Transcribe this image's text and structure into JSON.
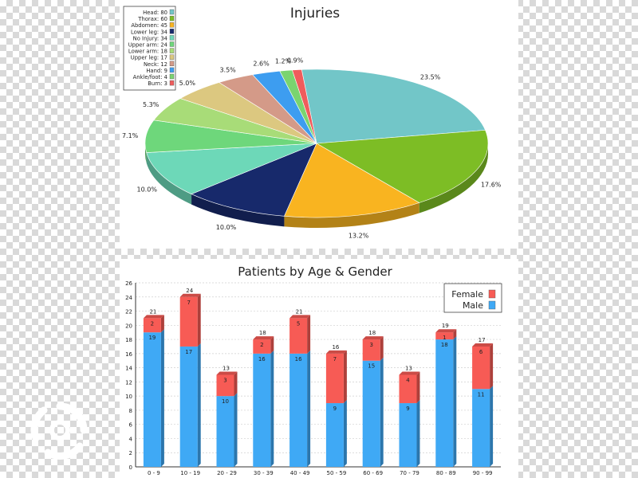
{
  "chart_data": [
    {
      "type": "pie",
      "title": "Injuries",
      "legend_position": "top-left",
      "slices": [
        {
          "label": "Head",
          "value": 80,
          "percent_label": "23.5%",
          "color": "#72c6c8"
        },
        {
          "label": "Thorax",
          "value": 60,
          "percent_label": "17.6%",
          "color": "#7dbd25"
        },
        {
          "label": "Abdomen",
          "value": 45,
          "percent_label": "13.2%",
          "color": "#f9b420"
        },
        {
          "label": "Lower leg",
          "value": 34,
          "percent_label": "10.0%",
          "color": "#17296b"
        },
        {
          "label": "No Injury",
          "value": 34,
          "percent_label": "10.0%",
          "color": "#6dd8b8"
        },
        {
          "label": "Upper arm",
          "value": 24,
          "percent_label": "7.1%",
          "color": "#6ed77b"
        },
        {
          "label": "Lower arm",
          "value": 18,
          "percent_label": "5.3%",
          "color": "#a8dc78"
        },
        {
          "label": "Upper leg",
          "value": 17,
          "percent_label": "5.0%",
          "color": "#dcc880"
        },
        {
          "label": "Neck",
          "value": 12,
          "percent_label": "3.5%",
          "color": "#d49a88"
        },
        {
          "label": "Hand",
          "value": 9,
          "percent_label": "2.6%",
          "color": "#3d9df0"
        },
        {
          "label": "Ankle/foot",
          "value": 4,
          "percent_label": "1.2%",
          "color": "#7ad46f"
        },
        {
          "label": "Burn",
          "value": 3,
          "percent_label": "0.9%",
          "color": "#ef5c5c"
        }
      ]
    },
    {
      "type": "bar",
      "stacked": true,
      "title": "Patients by Age & Gender",
      "legend_position": "top-right",
      "categories": [
        "0 - 9",
        "10 - 19",
        "20 - 29",
        "30 - 39",
        "40 - 49",
        "50 - 59",
        "60 - 69",
        "70 - 79",
        "80 - 89",
        "90 - 99"
      ],
      "series": [
        {
          "name": "Male",
          "color": "#3fa9f5",
          "values": [
            19,
            17,
            10,
            16,
            16,
            9,
            15,
            9,
            18,
            11
          ]
        },
        {
          "name": "Female",
          "color": "#f75b55",
          "values": [
            2,
            7,
            3,
            2,
            5,
            7,
            3,
            4,
            1,
            6
          ]
        }
      ],
      "totals": [
        21,
        24,
        13,
        18,
        21,
        16,
        18,
        13,
        19,
        17
      ],
      "ylim": [
        0,
        26
      ],
      "yticks": [
        0,
        2,
        4,
        6,
        8,
        10,
        12,
        14,
        16,
        18,
        20,
        22,
        24,
        26
      ],
      "grid": true
    }
  ]
}
